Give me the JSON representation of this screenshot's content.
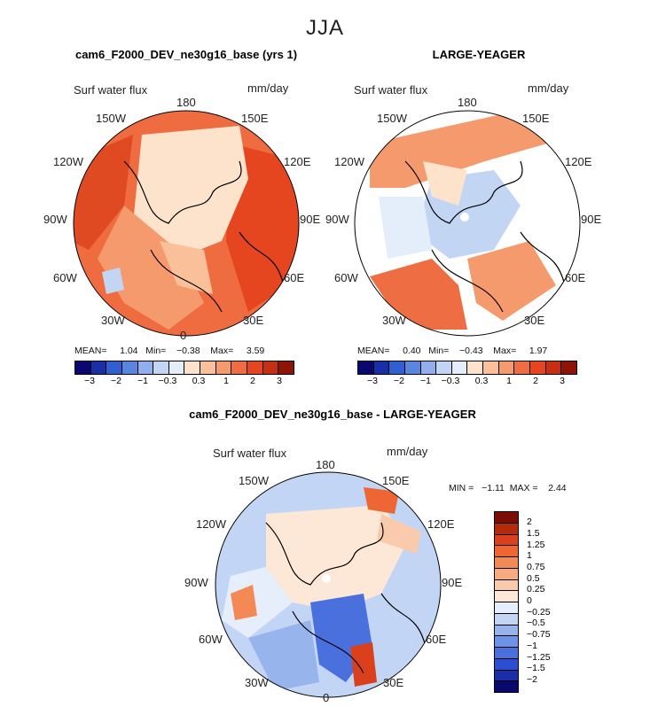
{
  "figure": {
    "season": "JJA"
  },
  "panels": [
    {
      "title": "cam6_F2000_DEV_ne30g16_base (yrs 1)",
      "variable": "Surf water flux",
      "units": "mm/day",
      "stats": {
        "mean_label": "MEAN=",
        "mean": "1.04",
        "min_label": "Min=",
        "min": "−0.38",
        "max_label": "Max=",
        "max": "3.59"
      },
      "longitudes": {
        "top": "180",
        "bottom": "0",
        "left_upper": "150W",
        "left_mid_upper": "120W",
        "left_mid": "90W",
        "left_mid_lower": "60W",
        "left_lower": "30W",
        "right_upper": "150E",
        "right_mid_upper": "120E",
        "right_mid": "90E",
        "right_mid_lower": "60E",
        "right_lower": "30E"
      },
      "colorbar": {
        "tick_labels": [
          "−3",
          "−2",
          "−1",
          "−0.3",
          "0.3",
          "1",
          "2",
          "3"
        ]
      }
    },
    {
      "title": "LARGE-YEAGER",
      "variable": "Surf water flux",
      "units": "mm/day",
      "stats": {
        "mean_label": "MEAN=",
        "mean": "0.40",
        "min_label": "Min=",
        "min": "−0.43",
        "max_label": "Max=",
        "max": "1.97"
      },
      "longitudes": {
        "top": "180",
        "bottom": "",
        "left_upper": "150W",
        "left_mid_upper": "120W",
        "left_mid": "90W",
        "left_mid_lower": "60W",
        "left_lower": "30W",
        "right_upper": "150E",
        "right_mid_upper": "120E",
        "right_mid": "90E",
        "right_mid_lower": "60E",
        "right_lower": "30E"
      },
      "colorbar": {
        "tick_labels": [
          "−3",
          "−2",
          "−1",
          "−0.3",
          "0.3",
          "1",
          "2",
          "3"
        ]
      }
    },
    {
      "title": "cam6_F2000_DEV_ne30g16_base - LARGE-YEAGER",
      "variable": "Surf water flux",
      "units": "mm/day",
      "stats": {
        "min_label": "MIN =",
        "min": "−1.11",
        "max_label": "MAX =",
        "max": "2.44"
      },
      "longitudes": {
        "top": "180",
        "bottom": "0",
        "left_upper": "150W",
        "left_mid_upper": "120W",
        "left_mid": "90W",
        "left_mid_lower": "60W",
        "left_lower": "30W",
        "right_upper": "150E",
        "right_mid_upper": "120E",
        "right_mid": "90E",
        "right_mid_lower": "60E",
        "right_lower": "30E"
      },
      "colorbar": {
        "tick_labels": [
          "2",
          "1.5",
          "1.25",
          "1",
          "0.75",
          "0.5",
          "0.25",
          "0",
          "−0.25",
          "−0.5",
          "−0.75",
          "−1",
          "−1.25",
          "−1.5",
          "−2"
        ]
      }
    }
  ],
  "colors": {
    "abs_scale": [
      "#08086e",
      "#1a2ea8",
      "#2f5fd0",
      "#5b86e0",
      "#8fb0ec",
      "#c2d6f4",
      "#e4eefa",
      "#fde2cc",
      "#f9c09a",
      "#f59a6c",
      "#ef6d42",
      "#e5461f",
      "#c62f12",
      "#8c1508"
    ],
    "diff_scale": [
      "#7a0d05",
      "#b52a0c",
      "#d9401b",
      "#ee6634",
      "#f38a56",
      "#f6ab82",
      "#f9cbac",
      "#fde7d6",
      "#e6eefb",
      "#c3d5f4",
      "#97b5ec",
      "#6f93e4",
      "#4a70dd",
      "#2c4fd2",
      "#1a2ea8",
      "#08086e"
    ]
  }
}
